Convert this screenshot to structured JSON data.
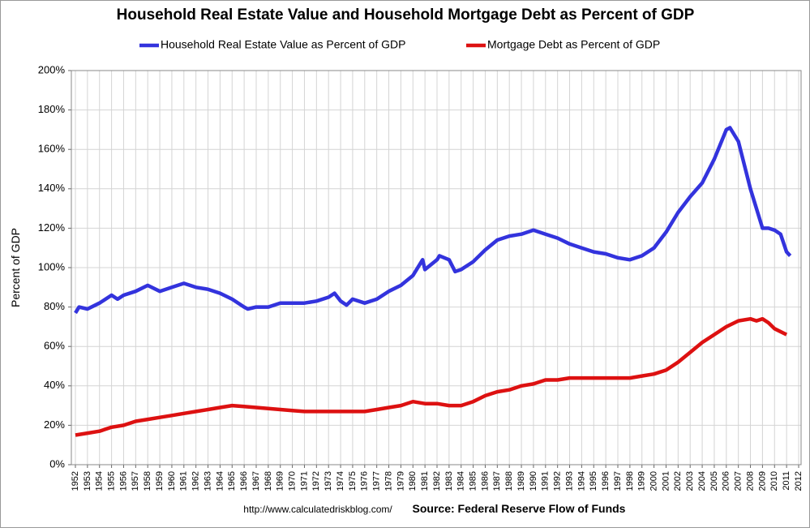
{
  "chart_data": {
    "type": "line",
    "title": "Household Real Estate Value and Household Mortgage Debt as Percent of GDP",
    "y_label": "Percent of GDP",
    "source_url": "http://www.calculatedriskblog.com/",
    "source": "Source: Federal Reserve Flow of Funds",
    "xlim": [
      1952,
      2012
    ],
    "xticks": [
      1952,
      1953,
      1954,
      1955,
      1956,
      1957,
      1958,
      1959,
      1960,
      1961,
      1962,
      1963,
      1964,
      1965,
      1966,
      1967,
      1968,
      1969,
      1970,
      1971,
      1972,
      1973,
      1974,
      1975,
      1976,
      1977,
      1978,
      1979,
      1980,
      1981,
      1982,
      1983,
      1984,
      1985,
      1986,
      1987,
      1988,
      1989,
      1990,
      1991,
      1992,
      1993,
      1994,
      1995,
      1996,
      1997,
      1998,
      1999,
      2000,
      2001,
      2002,
      2003,
      2004,
      2005,
      2006,
      2007,
      2008,
      2009,
      2010,
      2011,
      2012
    ],
    "ylim": [
      0,
      200
    ],
    "yticks": [
      {
        "value": 0,
        "label": "0%"
      },
      {
        "value": 20,
        "label": "20%"
      },
      {
        "value": 40,
        "label": "40%"
      },
      {
        "value": 60,
        "label": "60%"
      },
      {
        "value": 80,
        "label": "80%"
      },
      {
        "value": 100,
        "label": "100%"
      },
      {
        "value": 120,
        "label": "120%"
      },
      {
        "value": 140,
        "label": "140%"
      },
      {
        "value": 160,
        "label": "160%"
      },
      {
        "value": 180,
        "label": "180%"
      },
      {
        "value": 200,
        "label": "200%"
      }
    ],
    "grid": true,
    "legend": "top",
    "series": [
      {
        "name": "Household Real Estate Value as Percent of GDP",
        "color": "#3333dd",
        "x": [
          1952,
          1952.3,
          1953,
          1954,
          1955,
          1955.5,
          1956,
          1957,
          1958,
          1959,
          1960,
          1961,
          1962,
          1963,
          1964,
          1965,
          1966,
          1966.3,
          1967,
          1968,
          1969,
          1970,
          1971,
          1972,
          1973,
          1973.5,
          1974,
          1974.5,
          1975,
          1976,
          1977,
          1978,
          1979,
          1980,
          1980.8,
          1981,
          1982,
          1982.2,
          1983,
          1983.5,
          1984,
          1985,
          1986,
          1987,
          1988,
          1989,
          1990,
          1991,
          1992,
          1993,
          1994,
          1995,
          1996,
          1997,
          1998,
          1999,
          2000,
          2001,
          2002,
          2003,
          2004,
          2005,
          2006,
          2006.3,
          2007,
          2008,
          2009,
          2009.5,
          2010,
          2010.5,
          2011,
          2011.3
        ],
        "values": [
          77,
          80,
          79,
          82,
          86,
          84,
          86,
          88,
          91,
          88,
          90,
          92,
          90,
          89,
          87,
          84,
          80,
          79,
          80,
          80,
          82,
          82,
          82,
          83,
          85,
          87,
          83,
          81,
          84,
          82,
          84,
          88,
          91,
          96,
          104,
          99,
          104,
          106,
          104,
          98,
          99,
          103,
          109,
          114,
          116,
          117,
          119,
          117,
          115,
          112,
          110,
          108,
          107,
          105,
          104,
          106,
          110,
          118,
          128,
          136,
          143,
          155,
          170,
          171,
          164,
          140,
          120,
          120,
          119,
          117,
          108,
          106
        ]
      },
      {
        "name": "Mortgage Debt as Percent of GDP",
        "color": "#dd1111",
        "x": [
          1952,
          1953,
          1954,
          1955,
          1956,
          1957,
          1958,
          1959,
          1960,
          1961,
          1962,
          1963,
          1964,
          1965,
          1966,
          1967,
          1968,
          1969,
          1970,
          1971,
          1972,
          1973,
          1974,
          1975,
          1976,
          1977,
          1978,
          1979,
          1980,
          1981,
          1982,
          1983,
          1984,
          1985,
          1986,
          1987,
          1988,
          1989,
          1990,
          1991,
          1992,
          1993,
          1994,
          1995,
          1996,
          1997,
          1998,
          1999,
          2000,
          2001,
          2002,
          2003,
          2004,
          2005,
          2006,
          2007,
          2008,
          2008.5,
          2009,
          2009.5,
          2010,
          2011
        ],
        "values": [
          15,
          16,
          17,
          19,
          20,
          22,
          23,
          24,
          25,
          26,
          27,
          28,
          29,
          30,
          29.5,
          29,
          28.5,
          28,
          27.5,
          27,
          27,
          27,
          27,
          27,
          27,
          28,
          29,
          30,
          32,
          31,
          31,
          30,
          30,
          32,
          35,
          37,
          38,
          40,
          41,
          43,
          43,
          44,
          44,
          44,
          44,
          44,
          44,
          45,
          46,
          48,
          52,
          57,
          62,
          66,
          70,
          73,
          74,
          73,
          74,
          72,
          69,
          66
        ]
      }
    ]
  }
}
